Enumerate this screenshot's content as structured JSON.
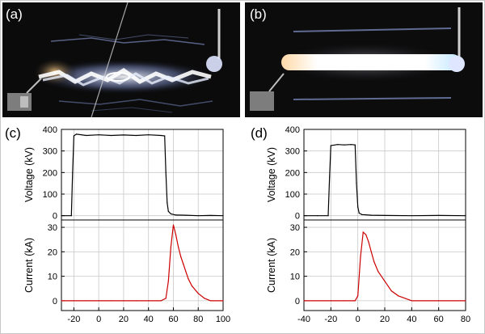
{
  "panels": {
    "a": {
      "label": "(a)"
    },
    "b": {
      "label": "(b)"
    },
    "c": {
      "label": "(c)"
    },
    "d": {
      "label": "(d)"
    }
  },
  "chart_data": [
    {
      "panel": "(c)",
      "type": "line",
      "xlim": [
        -30,
        100
      ],
      "x_ticks": [
        -20,
        0,
        20,
        40,
        60,
        80,
        100
      ],
      "x_tick_labels": [
        "-20",
        "0",
        "20",
        "40",
        "60",
        "80",
        "100"
      ],
      "grid": true,
      "subplots": [
        {
          "ylabel": "Voltage (kV)",
          "ylim": [
            -20,
            400
          ],
          "y_ticks": [
            0,
            100,
            200,
            300,
            400
          ],
          "y_tick_labels": [
            "0",
            "100",
            "200",
            "300",
            "400"
          ],
          "series": [
            {
              "color": "#000000",
              "x": [
                -30,
                -22,
                -21,
                -20,
                -18,
                -10,
                0,
                10,
                20,
                30,
                40,
                50,
                53,
                54,
                55,
                56,
                58,
                62,
                70,
                80,
                90,
                100
              ],
              "y": [
                0,
                0,
                200,
                370,
                378,
                372,
                375,
                372,
                374,
                372,
                375,
                372,
                370,
                200,
                60,
                20,
                8,
                3,
                2,
                0,
                1,
                0
              ]
            }
          ]
        },
        {
          "ylabel": "Current (kA)",
          "ylim": [
            -4,
            33
          ],
          "y_ticks": [
            0,
            10,
            20,
            30
          ],
          "y_tick_labels": [
            "0",
            "10",
            "20",
            "30"
          ],
          "series": [
            {
              "color": "#cc0000",
              "x": [
                -30,
                -20,
                -10,
                0,
                10,
                20,
                30,
                40,
                50,
                54,
                56,
                58,
                60,
                62,
                64,
                66,
                68,
                70,
                72,
                75,
                80,
                85,
                90,
                100
              ],
              "y": [
                0,
                0,
                0,
                0,
                0,
                0,
                0,
                0,
                0,
                1,
                8,
                22,
                31,
                27,
                22,
                18,
                15,
                12,
                9,
                6,
                3,
                1,
                0,
                0
              ]
            }
          ]
        }
      ]
    },
    {
      "panel": "(d)",
      "type": "line",
      "xlim": [
        -40,
        80
      ],
      "x_ticks": [
        -40,
        -20,
        0,
        20,
        40,
        60,
        80
      ],
      "x_tick_labels": [
        "-40",
        "-20",
        "0",
        "20",
        "40",
        "60",
        "80"
      ],
      "grid": true,
      "subplots": [
        {
          "ylabel": "Voltage (kV)",
          "ylim": [
            -20,
            400
          ],
          "y_ticks": [
            0,
            100,
            200,
            300,
            400
          ],
          "y_tick_labels": [
            "0",
            "100",
            "200",
            "300",
            "400"
          ],
          "series": [
            {
              "color": "#000000",
              "x": [
                -40,
                -30,
                -22,
                -21,
                -20,
                -15,
                -10,
                -5,
                -2,
                -1,
                0,
                1,
                3,
                10,
                20,
                40,
                60,
                80
              ],
              "y": [
                0,
                0,
                0,
                180,
                325,
                330,
                328,
                330,
                328,
                150,
                40,
                12,
                5,
                2,
                1,
                0,
                1,
                0
              ]
            }
          ]
        },
        {
          "ylabel": "Current (kA)",
          "ylim": [
            -4,
            33
          ],
          "y_ticks": [
            0,
            10,
            20,
            30
          ],
          "y_tick_labels": [
            "0",
            "10",
            "20",
            "30"
          ],
          "series": [
            {
              "color": "#cc0000",
              "x": [
                -40,
                -20,
                -10,
                -2,
                0,
                2,
                4,
                6,
                8,
                10,
                12,
                15,
                20,
                25,
                30,
                40,
                60,
                80
              ],
              "y": [
                0,
                0,
                0,
                0,
                2,
                18,
                28,
                27,
                24,
                20,
                16,
                12,
                8,
                4,
                2,
                0,
                0,
                0
              ]
            }
          ]
        }
      ]
    }
  ]
}
